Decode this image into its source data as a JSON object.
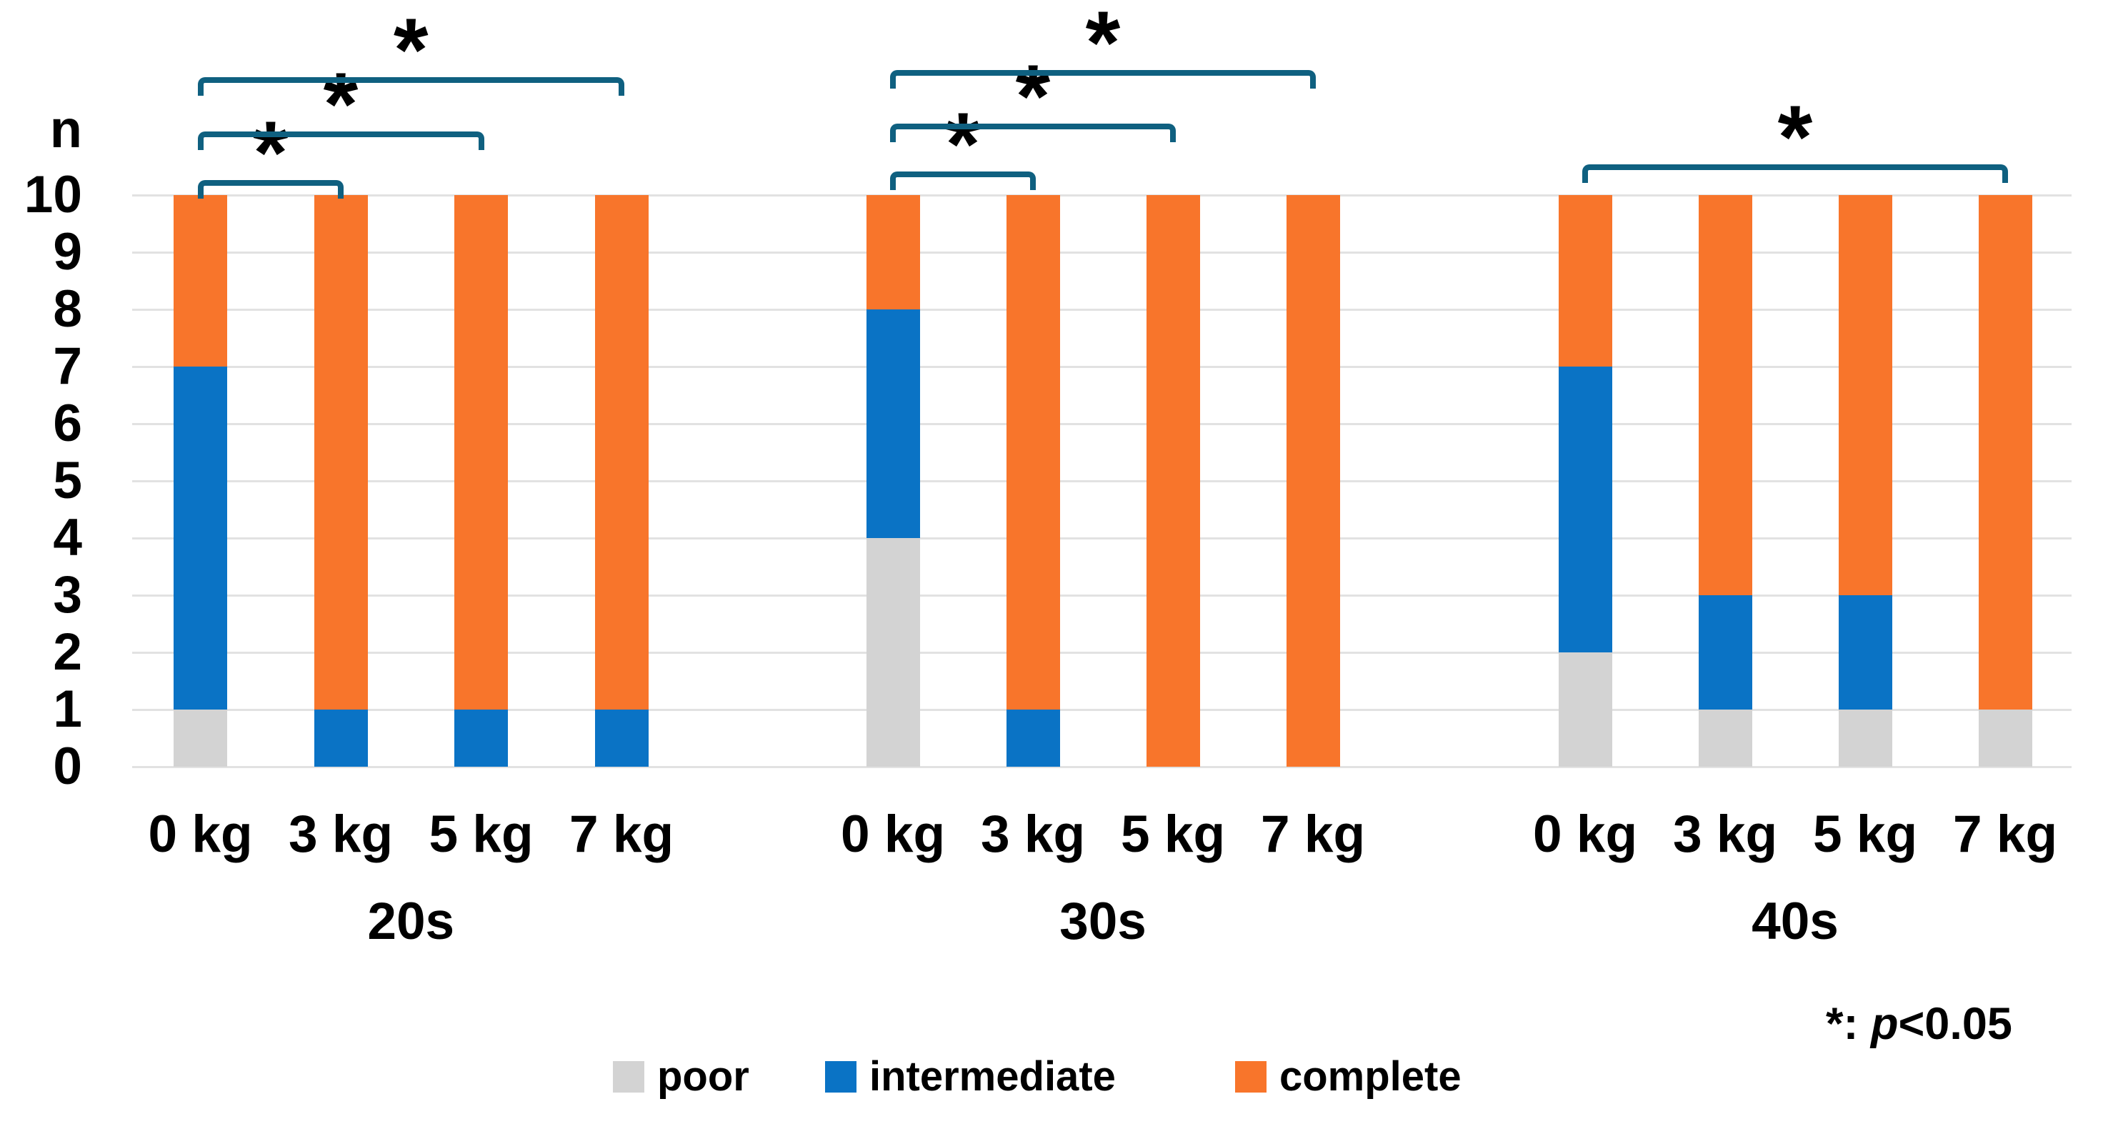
{
  "figure": {
    "background": "#FFFFFF",
    "annotation": {
      "prefix": "*: ",
      "italic": "p",
      "suffix": "<0.05"
    }
  },
  "chart_data": {
    "type": "bar",
    "stacked": true,
    "title": "",
    "xlabel": "",
    "ylabel": "n",
    "ylim": [
      0,
      10
    ],
    "yticks": [
      0,
      1,
      2,
      3,
      4,
      5,
      6,
      7,
      8,
      9,
      10
    ],
    "grid": "horizontal",
    "legend_position": "bottom",
    "bracket_color": "#0F6080",
    "gridline_color": "#E2E2E2",
    "series_names": [
      "poor",
      "intermediate",
      "complete"
    ],
    "legend": [
      {
        "label": "poor",
        "color": "#D3D3D3"
      },
      {
        "label": "intermediate",
        "color": "#0A73C5"
      },
      {
        "label": "complete",
        "color": "#F8752B"
      }
    ],
    "groups": [
      {
        "label": "20s",
        "categories": [
          "0 kg",
          "3 kg",
          "5 kg",
          "7 kg"
        ],
        "series": [
          {
            "name": "poor",
            "values": [
              1,
              0,
              0,
              0
            ]
          },
          {
            "name": "intermediate",
            "values": [
              6,
              1,
              1,
              1
            ]
          },
          {
            "name": "complete",
            "values": [
              3,
              9,
              9,
              9
            ]
          }
        ],
        "significance": [
          {
            "from": "0 kg",
            "to": "3 kg",
            "label": "*"
          },
          {
            "from": "0 kg",
            "to": "5 kg",
            "label": "*"
          },
          {
            "from": "0 kg",
            "to": "7 kg",
            "label": "*"
          }
        ]
      },
      {
        "label": "30s",
        "categories": [
          "0 kg",
          "3 kg",
          "5 kg",
          "7 kg"
        ],
        "series": [
          {
            "name": "poor",
            "values": [
              4,
              0,
              0,
              0
            ]
          },
          {
            "name": "intermediate",
            "values": [
              4,
              1,
              0,
              0
            ]
          },
          {
            "name": "complete",
            "values": [
              2,
              9,
              10,
              10
            ]
          }
        ],
        "significance": [
          {
            "from": "0 kg",
            "to": "3 kg",
            "label": "*"
          },
          {
            "from": "0 kg",
            "to": "5 kg",
            "label": "*"
          },
          {
            "from": "0 kg",
            "to": "7 kg",
            "label": "*"
          }
        ]
      },
      {
        "label": "40s",
        "categories": [
          "0 kg",
          "3 kg",
          "5 kg",
          "7 kg"
        ],
        "series": [
          {
            "name": "poor",
            "values": [
              2,
              1,
              1,
              1
            ]
          },
          {
            "name": "intermediate",
            "values": [
              5,
              2,
              2,
              0
            ]
          },
          {
            "name": "complete",
            "values": [
              3,
              7,
              7,
              9
            ]
          }
        ],
        "significance": [
          {
            "from": "0 kg",
            "to": "7 kg",
            "label": "*"
          }
        ]
      }
    ],
    "significance_note": "*: p<0.05"
  }
}
